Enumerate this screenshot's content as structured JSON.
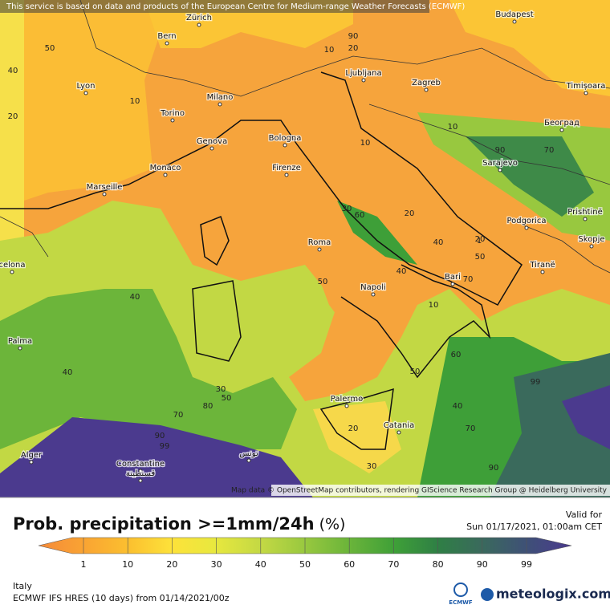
{
  "header": {
    "notice": "This service is based on data and products of the European Centre for Medium-range Weather Forecasts (ECMWF)"
  },
  "map": {
    "cities": [
      "Bern",
      "Zürich",
      "Budapest",
      "Lyon",
      "Milano",
      "Ljubljana",
      "Zagreb",
      "Timișoara",
      "Torino",
      "Genova",
      "Bologna",
      "Београд",
      "Monaco",
      "Firenze",
      "Sarajevo",
      "Marseille",
      "Podgorica",
      "Prishtinë",
      "Skopje",
      "Roma",
      "Bari",
      "Tiranë",
      "celona",
      "Napoli",
      "Palma",
      "Palermo",
      "Catania",
      "Alger",
      "Constantine",
      "قسنطينة",
      "تونس"
    ],
    "contour_labels": [
      50,
      40,
      10,
      20,
      90,
      20,
      10,
      10,
      20,
      10,
      90,
      70,
      30,
      60,
      20,
      40,
      50,
      40,
      70,
      50,
      10,
      40,
      60,
      50,
      40,
      70,
      99,
      30,
      50,
      80,
      70,
      90,
      40,
      20,
      30,
      90,
      99,
      1
    ],
    "attribution": "Map data © OpenStreetMap contributors, rendering GIScience Research Group @ Heidelberg University"
  },
  "legend": {
    "title": "Prob. precipitation >=1mm/24h",
    "unit": "(%)",
    "ticks": [
      1,
      10,
      20,
      30,
      40,
      50,
      60,
      70,
      80,
      90,
      99
    ]
  },
  "valid": {
    "label": "Valid for",
    "time": "Sun 01/17/2021, 01:00am CET"
  },
  "footer": {
    "region": "Italy",
    "model": "ECMWF IFS HRES (10 days) from 01/14/2021/00z",
    "logo_ecmwf": "ECMWF",
    "logo_site": "meteologix.com"
  }
}
